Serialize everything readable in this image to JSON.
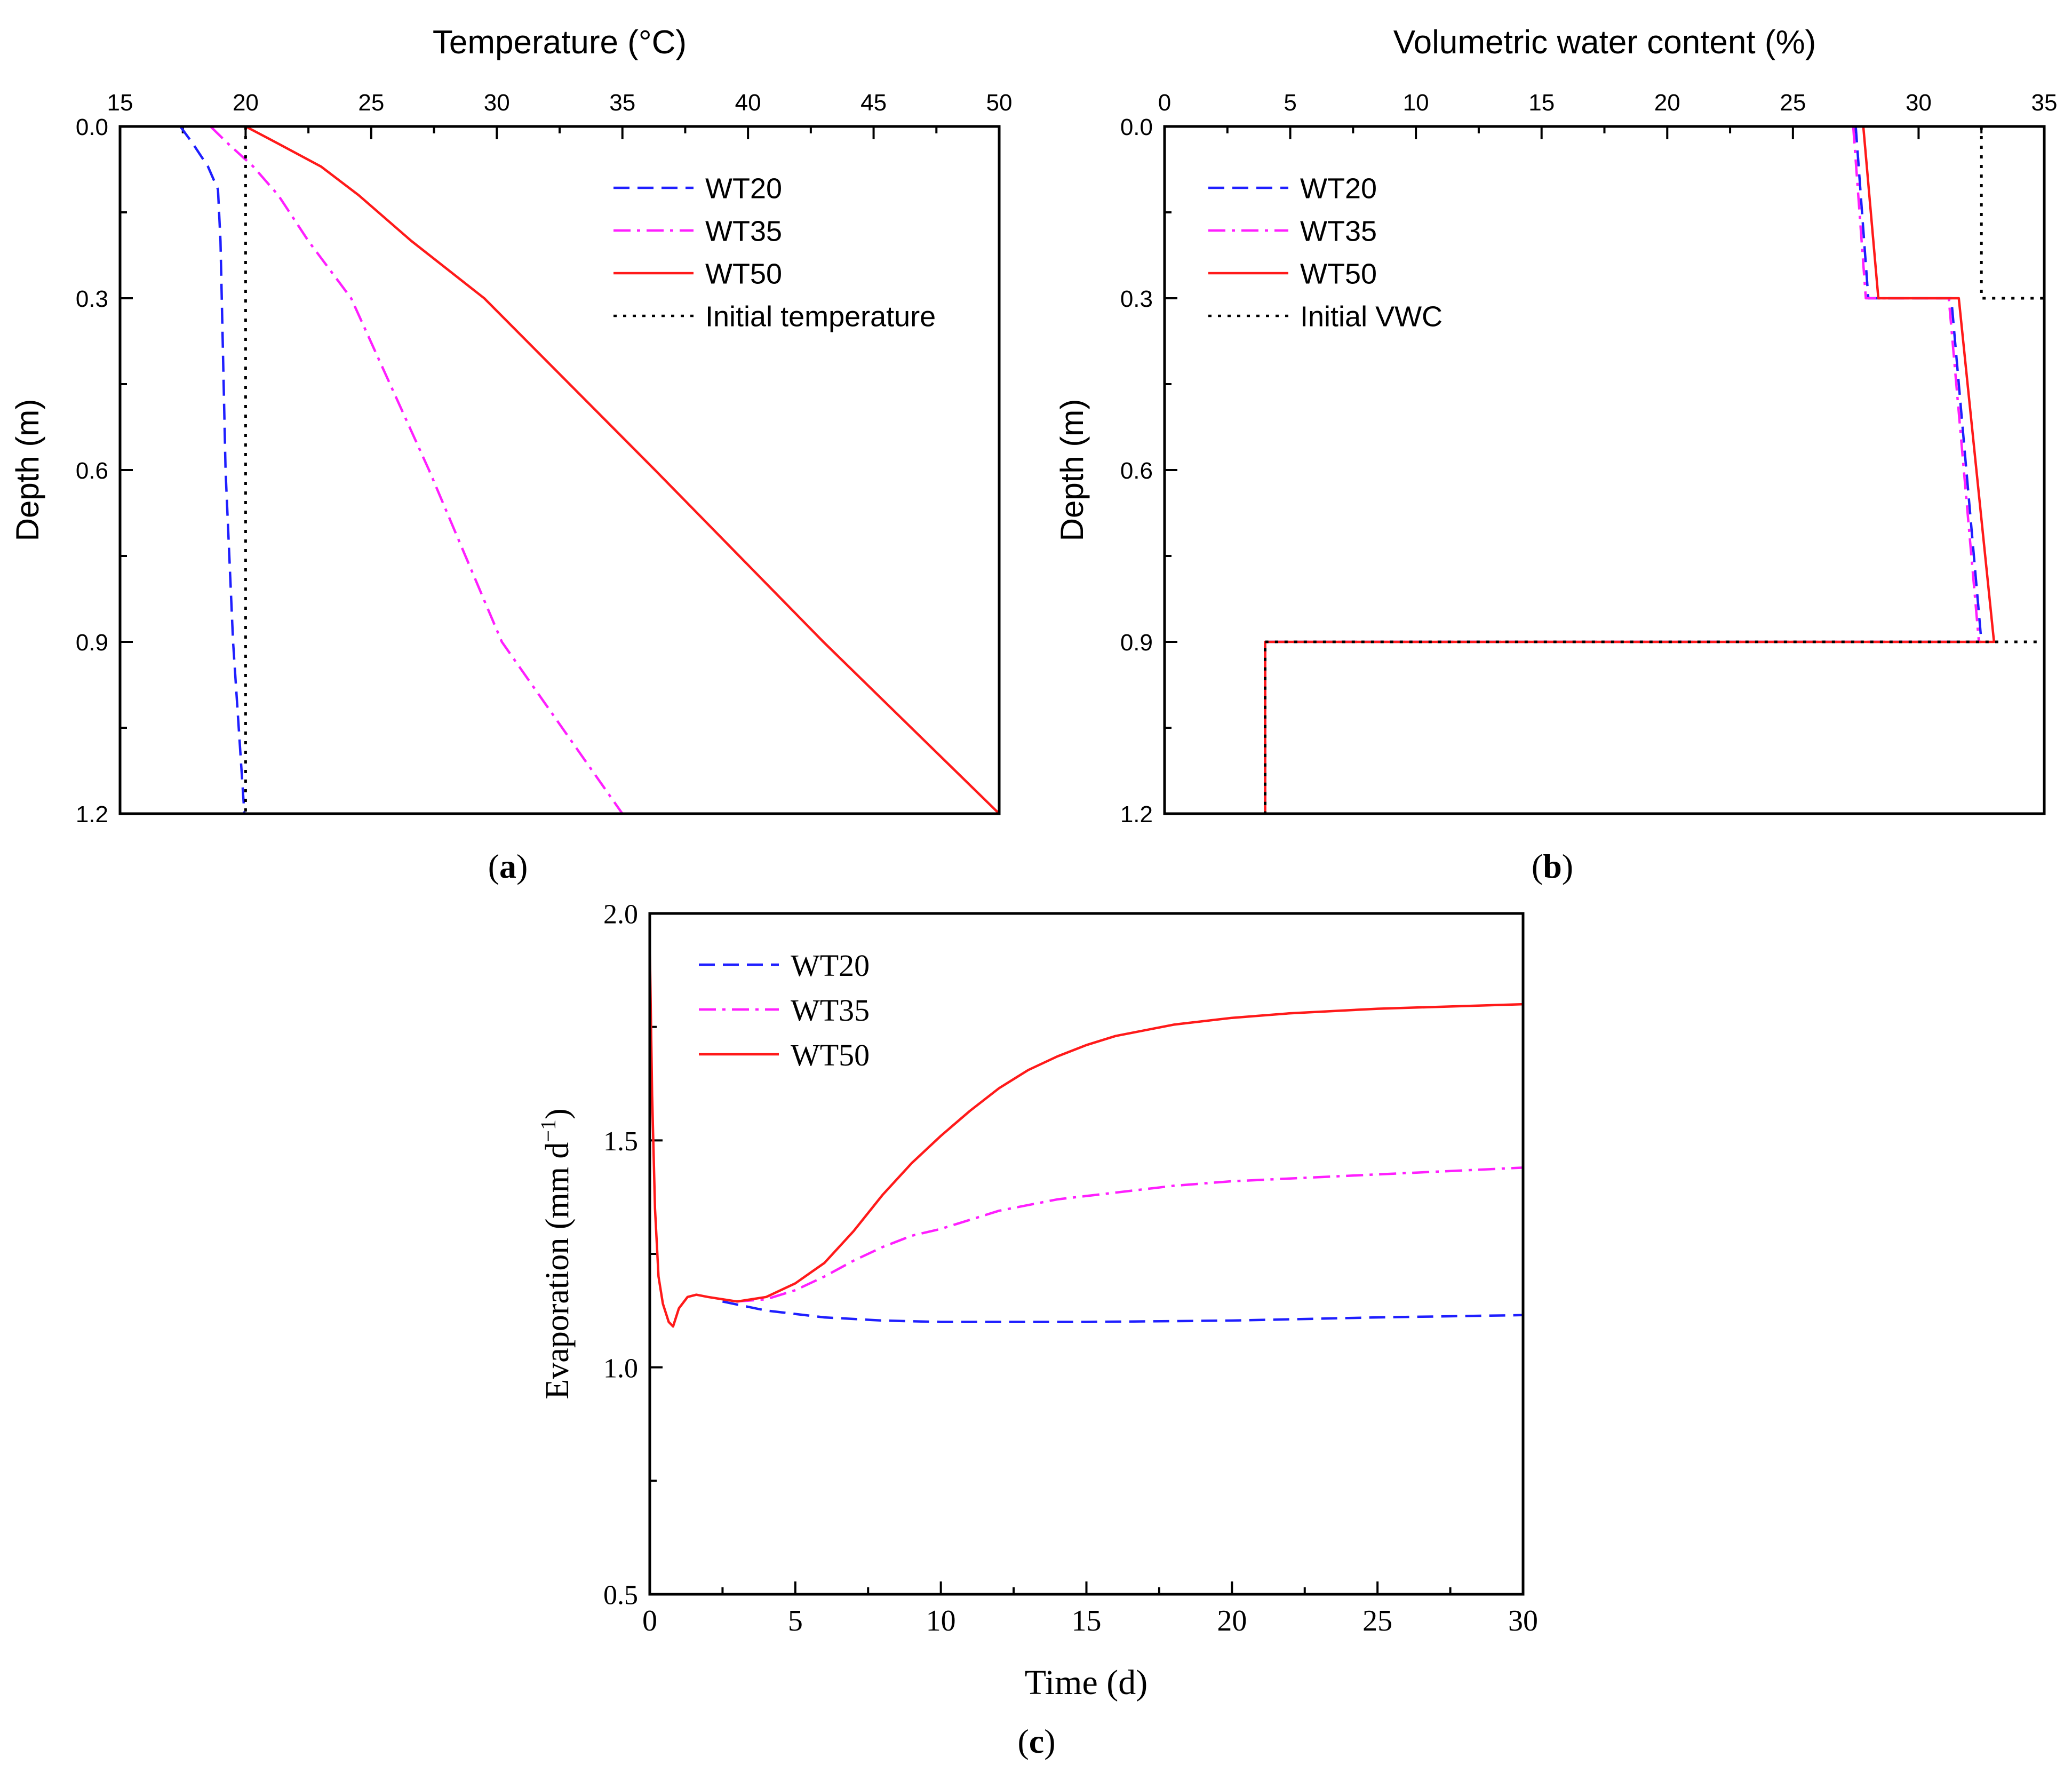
{
  "chart_data": [
    {
      "id": "a",
      "type": "line",
      "panel_label": "(a)",
      "xlabel": "Temperature (°C)",
      "ylabel": "Depth (m)",
      "xlim": [
        15,
        50
      ],
      "ylim": [
        0.0,
        1.2
      ],
      "x_ticks": [
        "15",
        "20",
        "25",
        "30",
        "35",
        "40",
        "45",
        "50"
      ],
      "y_ticks": [
        "0.0",
        "0.3",
        "0.6",
        "0.9",
        "1.2"
      ],
      "series": [
        {
          "name": "WT20",
          "color": "#1f1fff",
          "dash": "dashed",
          "points": [
            [
              17.4,
              0.0
            ],
            [
              17.9,
              0.03
            ],
            [
              18.5,
              0.07
            ],
            [
              18.9,
              0.11
            ],
            [
              19.0,
              0.2
            ],
            [
              19.05,
              0.3
            ],
            [
              19.2,
              0.6
            ],
            [
              19.5,
              0.9
            ],
            [
              19.95,
              1.2
            ]
          ]
        },
        {
          "name": "WT35",
          "color": "#ff1fff",
          "dash": "dashdot",
          "points": [
            [
              18.6,
              0.0
            ],
            [
              19.3,
              0.03
            ],
            [
              20.3,
              0.07
            ],
            [
              21.3,
              0.12
            ],
            [
              22.5,
              0.2
            ],
            [
              24.2,
              0.3
            ],
            [
              27.3,
              0.6
            ],
            [
              30.2,
              0.9
            ],
            [
              35.0,
              1.2
            ]
          ]
        },
        {
          "name": "WT50",
          "color": "#ff1a1a",
          "dash": "solid",
          "points": [
            [
              20.0,
              0.0
            ],
            [
              21.3,
              0.03
            ],
            [
              23.0,
              0.07
            ],
            [
              24.5,
              0.12
            ],
            [
              26.6,
              0.2
            ],
            [
              29.5,
              0.3
            ],
            [
              36.3,
              0.6
            ],
            [
              43.0,
              0.9
            ],
            [
              50.0,
              1.2
            ]
          ]
        },
        {
          "name": "Initial temperature",
          "color": "#000000",
          "dash": "dotted",
          "points": [
            [
              20.0,
              0.0
            ],
            [
              20.0,
              1.2
            ]
          ]
        }
      ]
    },
    {
      "id": "b",
      "type": "line",
      "panel_label": "(b)",
      "xlabel": "Volumetric water content (%)",
      "ylabel": "Depth (m)",
      "xlim": [
        0,
        35
      ],
      "ylim": [
        0.0,
        1.2
      ],
      "x_ticks": [
        "0",
        "5",
        "10",
        "15",
        "20",
        "25",
        "30",
        "35"
      ],
      "y_ticks": [
        "0.0",
        "0.3",
        "0.6",
        "0.9",
        "1.2"
      ],
      "series": [
        {
          "name": "WT20",
          "color": "#1f1fff",
          "dash": "dashed",
          "points": [
            [
              27.5,
              0.0
            ],
            [
              28.0,
              0.3
            ],
            [
              31.3,
              0.3
            ],
            [
              32.5,
              0.9
            ],
            [
              4.0,
              0.9
            ],
            [
              4.0,
              1.2
            ]
          ]
        },
        {
          "name": "WT35",
          "color": "#ff1fff",
          "dash": "dashdot",
          "points": [
            [
              27.4,
              0.0
            ],
            [
              27.9,
              0.3
            ],
            [
              31.2,
              0.3
            ],
            [
              32.4,
              0.9
            ],
            [
              4.0,
              0.9
            ],
            [
              4.0,
              1.2
            ]
          ]
        },
        {
          "name": "WT50",
          "color": "#ff1a1a",
          "dash": "solid",
          "points": [
            [
              27.8,
              0.0
            ],
            [
              28.4,
              0.3
            ],
            [
              31.6,
              0.3
            ],
            [
              33.0,
              0.9
            ],
            [
              4.0,
              0.9
            ],
            [
              4.0,
              1.2
            ]
          ]
        },
        {
          "name": "Initial VWC",
          "color": "#000000",
          "dash": "dotted",
          "points": [
            [
              32.5,
              0.0
            ],
            [
              32.5,
              0.3
            ],
            [
              35.0,
              0.3
            ],
            [
              35.0,
              0.9
            ],
            [
              4.0,
              0.9
            ],
            [
              4.0,
              1.2
            ]
          ]
        }
      ]
    },
    {
      "id": "c",
      "type": "line",
      "panel_label": "(c)",
      "xlabel": "Time (d)",
      "ylabel": "Evaporation (mm d",
      "ylabel_sup": "−1",
      "ylabel_end": ")",
      "xlim": [
        0,
        30
      ],
      "ylim": [
        0.5,
        2.0
      ],
      "x_ticks": [
        "0",
        "5",
        "10",
        "15",
        "20",
        "25",
        "30"
      ],
      "y_ticks": [
        "0.5",
        "1.0",
        "1.5",
        "2.0"
      ],
      "series": [
        {
          "name": "WT20",
          "color": "#1f1fff",
          "dash": "dashed",
          "points": [
            [
              2.5,
              1.145
            ],
            [
              4,
              1.125
            ],
            [
              6,
              1.11
            ],
            [
              8,
              1.103
            ],
            [
              10,
              1.1
            ],
            [
              15,
              1.1
            ],
            [
              20,
              1.103
            ],
            [
              25,
              1.11
            ],
            [
              30,
              1.115
            ]
          ]
        },
        {
          "name": "WT35",
          "color": "#ff1fff",
          "dash": "dashdot",
          "points": [
            [
              3,
              1.145
            ],
            [
              4,
              1.15
            ],
            [
              5,
              1.17
            ],
            [
              6,
              1.2
            ],
            [
              7,
              1.235
            ],
            [
              8,
              1.265
            ],
            [
              9,
              1.29
            ],
            [
              10,
              1.305
            ],
            [
              12,
              1.345
            ],
            [
              14,
              1.37
            ],
            [
              16,
              1.385
            ],
            [
              18,
              1.4
            ],
            [
              20,
              1.41
            ],
            [
              25,
              1.425
            ],
            [
              30,
              1.44
            ]
          ]
        },
        {
          "name": "WT50",
          "color": "#ff1a1a",
          "dash": "solid",
          "points": [
            [
              0.0,
              1.93
            ],
            [
              0.08,
              1.6
            ],
            [
              0.18,
              1.35
            ],
            [
              0.3,
              1.2
            ],
            [
              0.45,
              1.14
            ],
            [
              0.65,
              1.1
            ],
            [
              0.8,
              1.09
            ],
            [
              1.0,
              1.13
            ],
            [
              1.3,
              1.155
            ],
            [
              1.6,
              1.16
            ],
            [
              2.0,
              1.155
            ],
            [
              2.5,
              1.15
            ],
            [
              3,
              1.145
            ],
            [
              4,
              1.155
            ],
            [
              5,
              1.185
            ],
            [
              6,
              1.23
            ],
            [
              7,
              1.3
            ],
            [
              8,
              1.38
            ],
            [
              9,
              1.45
            ],
            [
              10,
              1.51
            ],
            [
              11,
              1.565
            ],
            [
              12,
              1.615
            ],
            [
              13,
              1.655
            ],
            [
              14,
              1.685
            ],
            [
              15,
              1.71
            ],
            [
              16,
              1.73
            ],
            [
              18,
              1.755
            ],
            [
              20,
              1.77
            ],
            [
              22,
              1.78
            ],
            [
              25,
              1.79
            ],
            [
              30,
              1.8
            ]
          ]
        }
      ]
    }
  ]
}
